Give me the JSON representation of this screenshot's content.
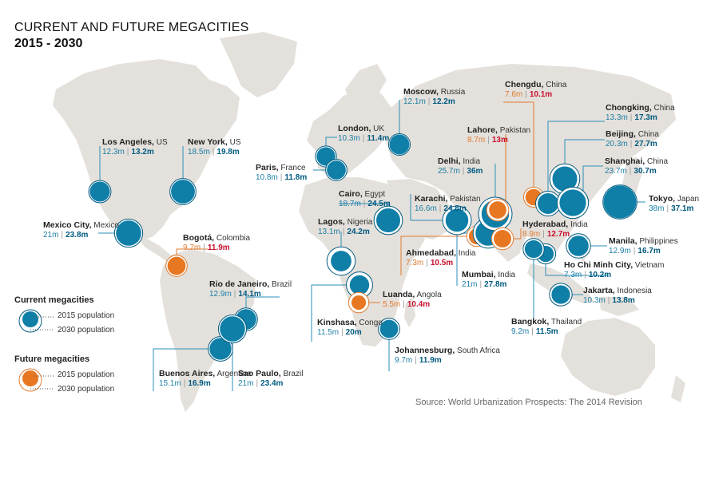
{
  "title": "CURRENT AND FUTURE MEGACITIES",
  "subtitle": "2015 - 2030",
  "source": "Source: World Urbanization Prospects: The 2014 Revision",
  "colors": {
    "current_fill": "#0f7fa8",
    "current_dark": "#005a80",
    "future_fill": "#e87722",
    "future_ring": "#e07b30",
    "land": "#e4e0db",
    "line_current": "#2a8fb8",
    "line_future": "#e07b30"
  },
  "legend": {
    "current_heading": "Current megacities",
    "future_heading": "Future megacities",
    "pop_2015": "2015 population",
    "pop_2030": "2030 population"
  },
  "cities": [
    {
      "name": "Los Angeles,",
      "country": "US",
      "p2015": "12.3m",
      "p2030": "13.2m",
      "type": "current"
    },
    {
      "name": "New York,",
      "country": "US",
      "p2015": "18.5m",
      "p2030": "19.8m",
      "type": "current"
    },
    {
      "name": "Mexico City,",
      "country": "Mexico",
      "p2015": "21m",
      "p2030": "23.8m",
      "type": "current"
    },
    {
      "name": "Bogotá,",
      "country": "Colombia",
      "p2015": "9.7m",
      "p2030": "11.9m",
      "type": "future"
    },
    {
      "name": "Rio de Janeiro,",
      "country": "Brazil",
      "p2015": "12.9m",
      "p2030": "14.1m",
      "type": "current"
    },
    {
      "name": "Buenos Aires,",
      "country": "Argentina",
      "p2015": "15.1m",
      "p2030": "16.9m",
      "type": "current"
    },
    {
      "name": "Sao Paulo,",
      "country": "Brazil",
      "p2015": "21m",
      "p2030": "23.4m",
      "type": "current"
    },
    {
      "name": "London,",
      "country": "UK",
      "p2015": "10.3m",
      "p2030": "11.4m",
      "type": "current"
    },
    {
      "name": "Paris,",
      "country": "France",
      "p2015": "10.8m",
      "p2030": "11.8m",
      "type": "current"
    },
    {
      "name": "Moscow,",
      "country": "Russia",
      "p2015": "12.1m",
      "p2030": "12.2m",
      "type": "current"
    },
    {
      "name": "Cairo,",
      "country": "Egypt",
      "p2015": "18.7m",
      "p2030": "24.5m",
      "type": "current"
    },
    {
      "name": "Lagos,",
      "country": "Nigeria",
      "p2015": "13.1m",
      "p2030": "24.2m",
      "type": "current"
    },
    {
      "name": "Kinshasa,",
      "country": "Congo",
      "p2015": "11.5m",
      "p2030": "20m",
      "type": "current"
    },
    {
      "name": "Luanda,",
      "country": "Angola",
      "p2015": "5.5m",
      "p2030": "10.4m",
      "type": "future"
    },
    {
      "name": "Johannesburg,",
      "country": "South Africa",
      "p2015": "9.7m",
      "p2030": "11.9m",
      "type": "future-blue"
    },
    {
      "name": "Karachi,",
      "country": "Pakistan",
      "p2015": "16.6m",
      "p2030": "24.8m",
      "type": "current"
    },
    {
      "name": "Ahmedabad,",
      "country": "India",
      "p2015": "7.3m",
      "p2030": "10.5m",
      "type": "future"
    },
    {
      "name": "Mumbai,",
      "country": "India",
      "p2015": "21m",
      "p2030": "27.8m",
      "type": "current"
    },
    {
      "name": "Delhi,",
      "country": "India",
      "p2015": "25.7m",
      "p2030": "36m",
      "type": "current"
    },
    {
      "name": "Lahore,",
      "country": "Pakistan",
      "p2015": "8.7m",
      "p2030": "13m",
      "type": "future"
    },
    {
      "name": "Chengdu,",
      "country": "China",
      "p2015": "7.6m",
      "p2030": "10.1m",
      "type": "future"
    },
    {
      "name": "Hyderabad,",
      "country": "India",
      "p2015": "8.9m",
      "p2030": "12.7m",
      "type": "future"
    },
    {
      "name": "Chongking,",
      "country": "China",
      "p2015": "13.3m",
      "p2030": "17.3m",
      "type": "current"
    },
    {
      "name": "Beijing,",
      "country": "China",
      "p2015": "20.3m",
      "p2030": "27.7m",
      "type": "current"
    },
    {
      "name": "Shanghai,",
      "country": "China",
      "p2015": "23.7m",
      "p2030": "30.7m",
      "type": "current"
    },
    {
      "name": "Tokyo,",
      "country": "Japan",
      "p2015": "38m",
      "p2030": "37.1m",
      "type": "current"
    },
    {
      "name": "Manila,",
      "country": "Philippines",
      "p2015": "12.9m",
      "p2030": "16.7m",
      "type": "current"
    },
    {
      "name": "Ho Chi Minh City,",
      "country": "Vietnam",
      "p2015": "7.3m",
      "p2030": "10.2m",
      "type": "future-blue"
    },
    {
      "name": "Jakarta,",
      "country": "Indonesia",
      "p2015": "10.3m",
      "p2030": "13.8m",
      "type": "current"
    },
    {
      "name": "Bangkok,",
      "country": "Thailand",
      "p2015": "9.2m",
      "p2030": "11.5m",
      "type": "future-blue"
    }
  ]
}
